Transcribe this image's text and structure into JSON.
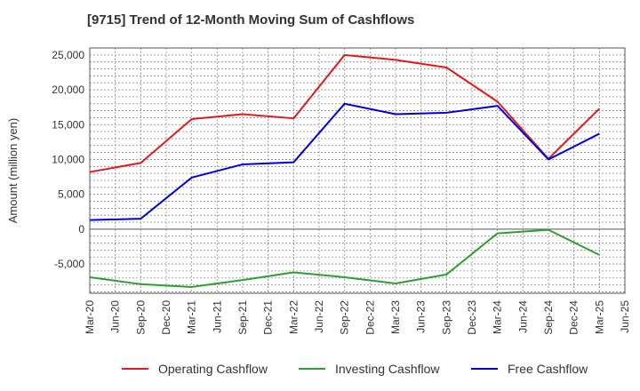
{
  "chart_data": {
    "type": "line",
    "title": "[9715]  Trend of 12-Month Moving Sum of Cashflows",
    "xlabel": "",
    "ylabel": "Amount (million yen)",
    "x": [
      "Mar-20",
      "Sep-20",
      "Mar-21",
      "Sep-21",
      "Mar-22",
      "Sep-22",
      "Mar-23",
      "Sep-23",
      "Mar-24",
      "Sep-24",
      "Mar-25"
    ],
    "x_ticks": [
      "Mar-20",
      "Jun-20",
      "Sep-20",
      "Dec-20",
      "Mar-21",
      "Jun-21",
      "Sep-21",
      "Dec-21",
      "Mar-22",
      "Jun-22",
      "Sep-22",
      "Dec-22",
      "Mar-23",
      "Jun-23",
      "Sep-23",
      "Dec-23",
      "Mar-24",
      "Jun-24",
      "Sep-24",
      "Dec-24",
      "Mar-25",
      "Jun-25"
    ],
    "y_ticks": [
      25000,
      20000,
      15000,
      10000,
      5000,
      0,
      -5000
    ],
    "y_tick_labels": [
      "25,000",
      "20,000",
      "15,000",
      "10,000",
      "5,000",
      "0",
      "-5,000"
    ],
    "ylim": [
      -9200,
      26000
    ],
    "grid": true,
    "legend_position": "bottom",
    "series": [
      {
        "name": "Operating Cashflow",
        "color": "#e31a1c",
        "values": [
          8200,
          9500,
          15800,
          16500,
          15900,
          25000,
          24300,
          23200,
          18300,
          10100,
          17300
        ]
      },
      {
        "name": "Investing Cashflow",
        "color": "#2ca02c",
        "values": [
          -6900,
          -7900,
          -8300,
          -7300,
          -6200,
          -6900,
          -7800,
          -6500,
          -600,
          -100,
          -3700
        ]
      },
      {
        "name": "Free Cashflow",
        "color": "#0000dd",
        "values": [
          1300,
          1500,
          7400,
          9300,
          9600,
          18000,
          16500,
          16700,
          17700,
          10000,
          13700
        ]
      }
    ]
  }
}
